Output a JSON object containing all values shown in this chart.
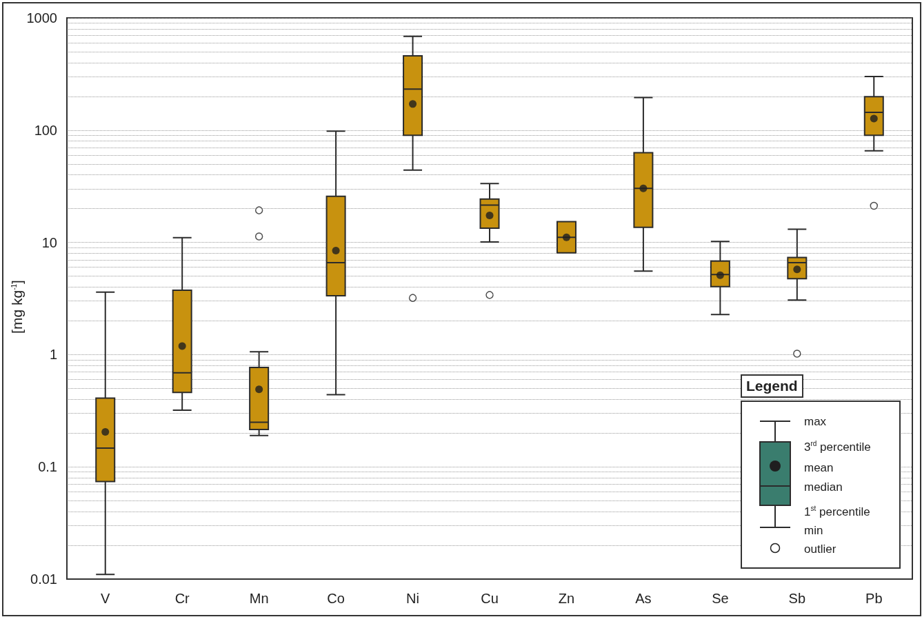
{
  "chart_data": {
    "type": "box",
    "ylabel": "[mg kg$^{-1}$]",
    "categories": [
      "V",
      "Cr",
      "Mn",
      "Co",
      "Ni",
      "Cu",
      "Zn",
      "As",
      "Se",
      "Sb",
      "Pb"
    ],
    "color": "#c8920f",
    "boxes": [
      {
        "low": 0.011,
        "q1": 0.074,
        "median": 0.147,
        "q3": 0.41,
        "high": 3.6,
        "mean": 0.205
      },
      {
        "low": 0.32,
        "q1": 0.46,
        "median": 0.69,
        "q3": 3.75,
        "high": 11,
        "mean": 1.19
      },
      {
        "low": 0.19,
        "q1": 0.215,
        "median": 0.25,
        "q3": 0.77,
        "high": 1.06,
        "mean": 0.49,
        "outliers": [
          11.3,
          19.3
        ]
      },
      {
        "low": 0.44,
        "q1": 3.35,
        "median": 6.6,
        "q3": 25.7,
        "high": 98,
        "mean": 8.45
      },
      {
        "low": 44,
        "q1": 90,
        "median": 232,
        "q3": 460,
        "high": 685,
        "mean": 171,
        "outliers": [
          3.2
        ]
      },
      {
        "low": 10.1,
        "q1": 13.4,
        "median": 21.5,
        "q3": 24.3,
        "high": 33.4,
        "mean": 17.4,
        "outliers": [
          3.4
        ]
      },
      {
        "low": 8.06,
        "q1": 8.06,
        "median": 11.1,
        "q3": 15.3,
        "high": 15.3,
        "mean": 11.1
      },
      {
        "low": 5.55,
        "q1": 13.6,
        "median": 30.3,
        "q3": 63,
        "high": 195,
        "mean": 30.3
      },
      {
        "low": 2.28,
        "q1": 4.03,
        "median": 5.17,
        "q3": 6.8,
        "high": 10.2,
        "mean": 5.1
      },
      {
        "low": 3.06,
        "q1": 4.75,
        "median": 6.6,
        "q3": 7.33,
        "high": 13.1,
        "mean": 5.74,
        "outliers": [
          1.02
        ]
      },
      {
        "low": 65.5,
        "q1": 90,
        "median": 144,
        "q3": 199,
        "high": 300,
        "mean": 127,
        "outliers": [
          21.2
        ]
      }
    ],
    "log": true,
    "ylim": [
      0.01,
      1000
    ],
    "yticks": [
      0.01,
      0.1,
      1,
      10,
      100,
      1000
    ],
    "grid": "y",
    "legend_title": "Legend",
    "annotations": [
      "max",
      "3$^{rd}$ percentile",
      "mean",
      "median",
      "1$^{st}$ percentile",
      "min",
      "outlier"
    ]
  }
}
